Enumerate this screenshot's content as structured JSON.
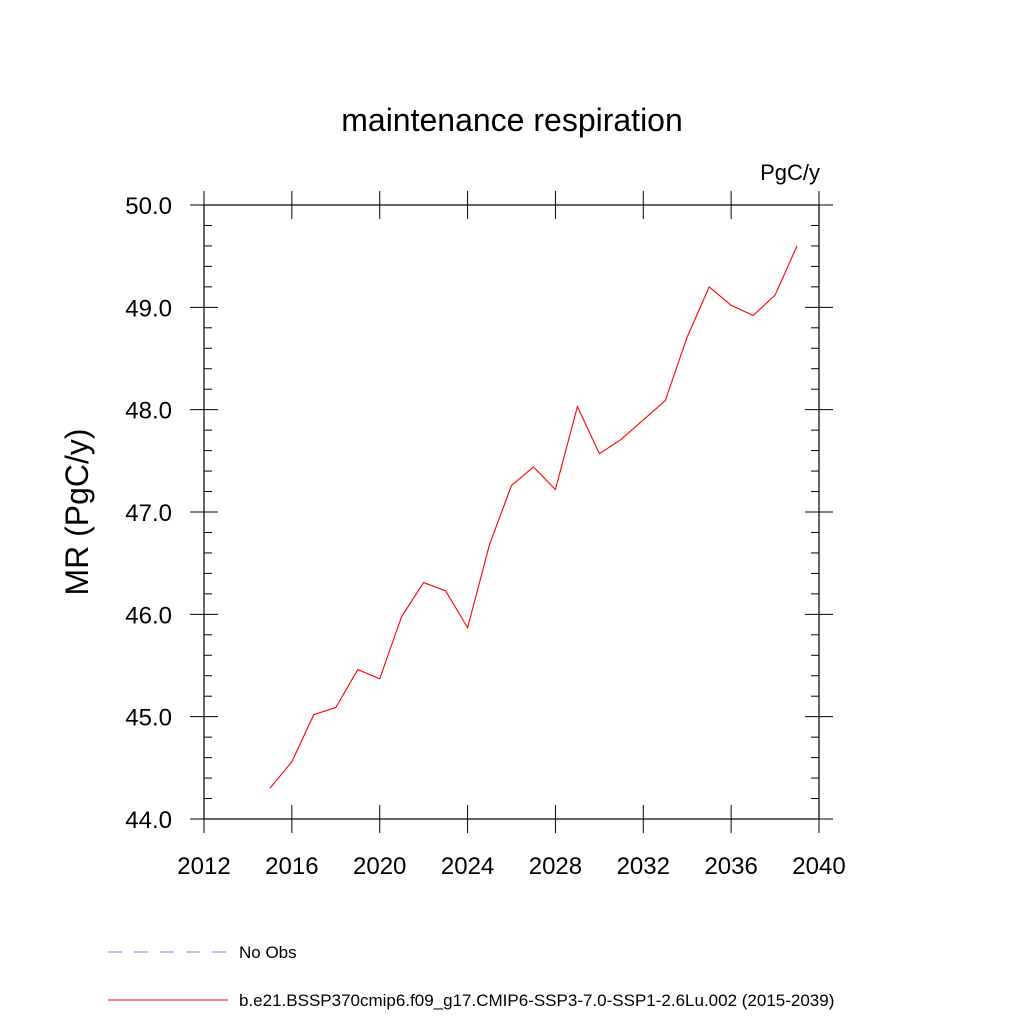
{
  "chart_data": {
    "type": "line",
    "title": "maintenance respiration",
    "units_label": "PgC/y",
    "xlabel": "",
    "ylabel": "MR  (PgC/y)",
    "xlim": [
      2012,
      2040
    ],
    "ylim": [
      44.0,
      50.0
    ],
    "x_ticks": [
      2012,
      2016,
      2020,
      2024,
      2028,
      2032,
      2036,
      2040
    ],
    "x_tick_labels": [
      "2012",
      "2016",
      "2020",
      "2024",
      "2028",
      "2032",
      "2036",
      "2040"
    ],
    "y_ticks": [
      44.0,
      45.0,
      46.0,
      47.0,
      48.0,
      49.0,
      50.0
    ],
    "y_tick_labels": [
      "44.0",
      "45.0",
      "46.0",
      "47.0",
      "48.0",
      "49.0",
      "50.0"
    ],
    "grid": false,
    "legend_position": "bottom-left",
    "series": [
      {
        "name": "b.e21.BSSP370cmip6.f09_g17.CMIP6-SSP3-7.0-SSP1-2.6Lu.002 (2015-2039)",
        "color": "#ff0000",
        "style": "solid",
        "x": [
          2015,
          2016,
          2017,
          2018,
          2019,
          2020,
          2021,
          2022,
          2023,
          2024,
          2025,
          2026,
          2027,
          2028,
          2029,
          2030,
          2031,
          2032,
          2033,
          2034,
          2035,
          2036,
          2037,
          2038,
          2039
        ],
        "y": [
          44.3,
          44.56,
          45.02,
          45.09,
          45.46,
          45.37,
          45.98,
          46.31,
          46.23,
          45.87,
          46.68,
          47.26,
          47.44,
          47.22,
          48.03,
          47.57,
          47.71,
          47.9,
          48.09,
          48.71,
          49.2,
          49.02,
          48.92,
          49.12,
          49.6
        ]
      },
      {
        "name": "No Obs",
        "color": "#8a7fd0",
        "style": "dashed",
        "x": [],
        "y": []
      }
    ]
  }
}
